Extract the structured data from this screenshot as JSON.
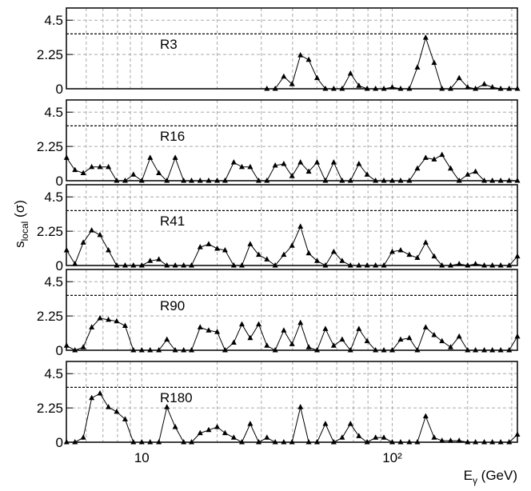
{
  "chart_data": {
    "type": "line",
    "log_x": true,
    "grid": true,
    "xlabel": [
      "E",
      "γ",
      " (GeV)"
    ],
    "ylabel": [
      "s",
      "local",
      " (σ)"
    ],
    "xlim": [
      5,
      316
    ],
    "ylim": [
      0,
      5.3
    ],
    "xticks": [
      10,
      {
        "value": 100,
        "label": "10²"
      }
    ],
    "xminor": [
      5,
      6,
      7,
      8,
      9,
      20,
      30,
      40,
      50,
      60,
      70,
      80,
      90,
      200,
      300
    ],
    "yticks": [
      0,
      2.25,
      4.5
    ],
    "threshold": 3.6,
    "x": [
      5.01,
      5.41,
      5.84,
      6.31,
      6.81,
      7.36,
      7.94,
      8.58,
      9.26,
      10.0,
      10.8,
      11.7,
      12.6,
      13.6,
      14.7,
      15.8,
      17.1,
      18.5,
      20.0,
      21.5,
      23.3,
      25.1,
      27.1,
      29.3,
      31.6,
      34.1,
      36.9,
      39.8,
      43.0,
      46.4,
      50.1,
      54.1,
      58.4,
      63.1,
      68.1,
      73.6,
      79.4,
      85.8,
      92.6,
      100,
      108,
      117,
      126,
      136,
      147,
      158,
      171,
      185,
      200,
      215,
      233,
      251,
      271,
      293,
      316
    ],
    "series": [
      {
        "name": "R3",
        "color": "#000000",
        "values": [
          null,
          null,
          null,
          null,
          null,
          null,
          null,
          null,
          null,
          null,
          null,
          null,
          null,
          null,
          null,
          null,
          null,
          null,
          null,
          null,
          null,
          null,
          null,
          null,
          0,
          0,
          0.8,
          0.3,
          2.2,
          1.9,
          0.7,
          0,
          0,
          0,
          1.0,
          0.2,
          0,
          0,
          0,
          0.1,
          0,
          0,
          1.4,
          3.35,
          1.7,
          0,
          0,
          0.7,
          0.1,
          0,
          0.3,
          0.1,
          0,
          0,
          0
        ]
      },
      {
        "name": "R16",
        "color": "#000000",
        "values": [
          1.5,
          0.7,
          0.5,
          0.9,
          0.9,
          0.9,
          0,
          0,
          0.4,
          0,
          1.5,
          0.5,
          0,
          1.5,
          0,
          0,
          0,
          0,
          0,
          0,
          1.2,
          0.9,
          0.9,
          0,
          0,
          1.0,
          1.1,
          0.3,
          1.2,
          0.6,
          1.2,
          0,
          1.2,
          0,
          0,
          1.1,
          0.4,
          0,
          0,
          0,
          0,
          0,
          0.8,
          1.5,
          1.4,
          1.7,
          0.8,
          0,
          0.4,
          0.6,
          0,
          0,
          0,
          0,
          0
        ]
      },
      {
        "name": "R41",
        "color": "#000000",
        "values": [
          1.0,
          0.1,
          1.5,
          2.3,
          2.0,
          1.0,
          0,
          0,
          0,
          0,
          0.3,
          0.4,
          0,
          0,
          0,
          0,
          1.2,
          1.4,
          1.1,
          1.0,
          0,
          0,
          1.4,
          0.7,
          0.4,
          0,
          0.7,
          1.3,
          2.55,
          0.8,
          0.3,
          0,
          0.9,
          0.3,
          0,
          0,
          0,
          0,
          0,
          0.9,
          1.0,
          0.7,
          0.5,
          1.5,
          0.6,
          0,
          0,
          0.1,
          0,
          0.1,
          0,
          0,
          0,
          0,
          0.6
        ]
      },
      {
        "name": "R90",
        "color": "#000000",
        "values": [
          0.3,
          0,
          0.2,
          1.5,
          2.1,
          2.0,
          1.9,
          1.6,
          0,
          0,
          0,
          0,
          0.7,
          0,
          0,
          0,
          1.5,
          1.3,
          1.2,
          0,
          0.5,
          1.7,
          0.8,
          1.7,
          0.3,
          0,
          1.3,
          0.4,
          1.8,
          0.2,
          0,
          1.4,
          0.3,
          0.7,
          0,
          1.4,
          0.6,
          0,
          0,
          0,
          0.7,
          0.8,
          0,
          1.5,
          1.0,
          0.6,
          0.2,
          0.9,
          0,
          0,
          0,
          0,
          0,
          0,
          0.9
        ]
      },
      {
        "name": "R180",
        "color": "#000000",
        "values": [
          0,
          0,
          0.3,
          2.9,
          3.2,
          2.3,
          2.0,
          1.5,
          0,
          0,
          0,
          0,
          2.3,
          1.0,
          0,
          0,
          0.6,
          0.8,
          1.0,
          0.6,
          0.3,
          0,
          1.2,
          0,
          0.3,
          0,
          0,
          0,
          2.3,
          0,
          0,
          1.2,
          0,
          0.3,
          1.2,
          0.4,
          0,
          0.3,
          0.3,
          0,
          0,
          0,
          0,
          1.7,
          0.3,
          0.1,
          0.1,
          0.1,
          0,
          0,
          0,
          0,
          0,
          0,
          0.5
        ]
      }
    ]
  }
}
